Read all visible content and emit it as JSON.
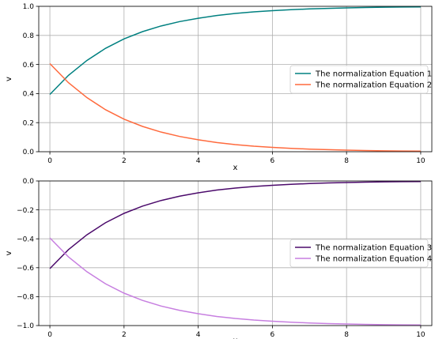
{
  "chart_data": [
    {
      "type": "line",
      "xlabel": "x",
      "ylabel": "v",
      "xlim": [
        -0.3,
        10.3
      ],
      "ylim": [
        0.0,
        1.0
      ],
      "xticks": [
        0,
        2,
        4,
        6,
        8,
        10
      ],
      "xtick_labels": [
        "0",
        "2",
        "4",
        "6",
        "8",
        "10"
      ],
      "yticks": [
        0.0,
        0.2,
        0.4,
        0.6,
        0.8,
        1.0
      ],
      "ytick_labels": [
        "0.0",
        "0.2",
        "0.4",
        "0.6",
        "0.8",
        "1.0"
      ],
      "grid": true,
      "legend_position": "center-right",
      "series": [
        {
          "name": "The normalization Equation 1",
          "color": "#008080",
          "x": [
            0,
            0.5,
            1,
            1.5,
            2,
            2.5,
            3,
            3.5,
            4,
            4.5,
            5,
            5.5,
            6,
            6.5,
            7,
            7.5,
            8,
            8.5,
            9,
            9.5,
            10
          ],
          "y": [
            0.394,
            0.525,
            0.628,
            0.711,
            0.776,
            0.826,
            0.865,
            0.895,
            0.918,
            0.937,
            0.951,
            0.962,
            0.97,
            0.977,
            0.982,
            0.986,
            0.989,
            0.992,
            0.994,
            0.995,
            0.996
          ]
        },
        {
          "name": "The normalization Equation 2",
          "color": "#ff6a3d",
          "x": [
            0,
            0.5,
            1,
            1.5,
            2,
            2.5,
            3,
            3.5,
            4,
            4.5,
            5,
            5.5,
            6,
            6.5,
            7,
            7.5,
            8,
            8.5,
            9,
            9.5,
            10
          ],
          "y": [
            0.606,
            0.475,
            0.372,
            0.289,
            0.224,
            0.174,
            0.135,
            0.105,
            0.082,
            0.063,
            0.049,
            0.038,
            0.03,
            0.023,
            0.018,
            0.014,
            0.011,
            0.008,
            0.006,
            0.005,
            0.004
          ]
        }
      ]
    },
    {
      "type": "line",
      "xlabel": "x",
      "ylabel": "v",
      "xlim": [
        -0.3,
        10.3
      ],
      "ylim": [
        -1.0,
        0.0
      ],
      "xticks": [
        0,
        2,
        4,
        6,
        8,
        10
      ],
      "xtick_labels": [
        "0",
        "2",
        "4",
        "6",
        "8",
        "10"
      ],
      "yticks": [
        -1.0,
        -0.8,
        -0.6,
        -0.4,
        -0.2,
        0.0
      ],
      "ytick_labels": [
        "−1.0",
        "−0.8",
        "−0.6",
        "−0.4",
        "−0.2",
        "0.0"
      ],
      "grid": true,
      "legend_position": "center-right",
      "series": [
        {
          "name": "The normalization Equation 3",
          "color": "#4b0a6b",
          "x": [
            0,
            0.5,
            1,
            1.5,
            2,
            2.5,
            3,
            3.5,
            4,
            4.5,
            5,
            5.5,
            6,
            6.5,
            7,
            7.5,
            8,
            8.5,
            9,
            9.5,
            10
          ],
          "y": [
            -0.606,
            -0.475,
            -0.372,
            -0.289,
            -0.224,
            -0.174,
            -0.135,
            -0.105,
            -0.082,
            -0.063,
            -0.049,
            -0.038,
            -0.03,
            -0.023,
            -0.018,
            -0.014,
            -0.011,
            -0.008,
            -0.006,
            -0.005,
            -0.004
          ]
        },
        {
          "name": "The normalization Equation 4",
          "color": "#c77fe0",
          "x": [
            0,
            0.5,
            1,
            1.5,
            2,
            2.5,
            3,
            3.5,
            4,
            4.5,
            5,
            5.5,
            6,
            6.5,
            7,
            7.5,
            8,
            8.5,
            9,
            9.5,
            10
          ],
          "y": [
            -0.394,
            -0.525,
            -0.628,
            -0.711,
            -0.776,
            -0.826,
            -0.865,
            -0.895,
            -0.918,
            -0.937,
            -0.951,
            -0.962,
            -0.97,
            -0.977,
            -0.982,
            -0.986,
            -0.989,
            -0.992,
            -0.994,
            -0.995,
            -0.996
          ]
        }
      ]
    }
  ]
}
